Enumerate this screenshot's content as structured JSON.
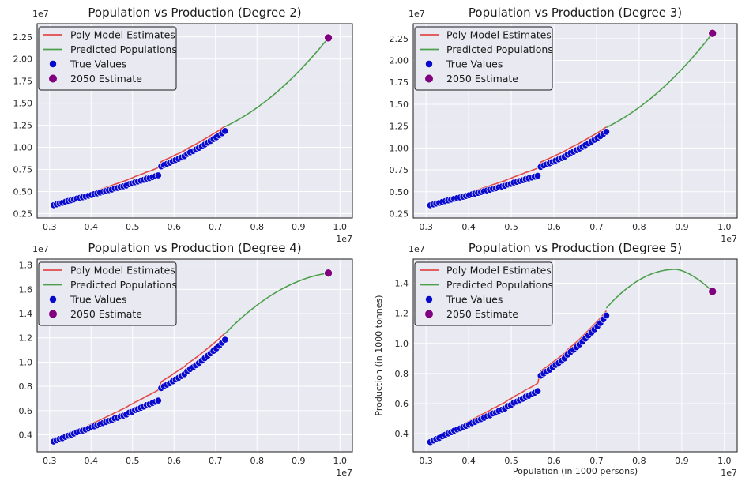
{
  "figure": {
    "background": "#ffffff",
    "axes_background": "#e9e9f1"
  },
  "chart_data": [
    {
      "type": "line",
      "title": "Population vs Production (Degree 2)",
      "xlabel": "",
      "ylabel": "",
      "x_exponent": "1e7",
      "y_exponent": "1e7",
      "xlim": [
        0.27,
        1.03
      ],
      "ylim": [
        0.2,
        2.4
      ],
      "xticks": [
        0.3,
        0.4,
        0.5,
        0.6,
        0.7,
        0.8,
        0.9,
        1.0
      ],
      "xtick_labels": [
        "0.3",
        "0.4",
        "0.5",
        "0.6",
        "0.7",
        "0.8",
        "0.9",
        "1.0"
      ],
      "yticks": [
        0.25,
        0.5,
        0.75,
        1.0,
        1.25,
        1.5,
        1.75,
        2.0,
        2.25
      ],
      "ytick_labels": [
        "0.25",
        "0.50",
        "0.75",
        "1.00",
        "1.25",
        "1.50",
        "1.75",
        "2.00",
        "2.25"
      ],
      "legend": {
        "location": "upper-left",
        "entries": [
          "Poly Model Estimates",
          "Predicted Populations",
          "True Values",
          "2050 Estimate"
        ]
      },
      "estimate_2050": {
        "x": 0.972,
        "y": 2.24
      }
    },
    {
      "type": "line",
      "title": "Population vs Production (Degree 3)",
      "xlabel": "",
      "ylabel": "",
      "x_exponent": "1e7",
      "y_exponent": "1e7",
      "xlim": [
        0.27,
        1.03
      ],
      "ylim": [
        0.2,
        2.42
      ],
      "xticks": [
        0.3,
        0.4,
        0.5,
        0.6,
        0.7,
        0.8,
        0.9,
        1.0
      ],
      "xtick_labels": [
        "0.3",
        "0.4",
        "0.5",
        "0.6",
        "0.7",
        "0.8",
        "0.9",
        "1.0"
      ],
      "yticks": [
        0.25,
        0.5,
        0.75,
        1.0,
        1.25,
        1.5,
        1.75,
        2.0,
        2.25
      ],
      "ytick_labels": [
        "0.25",
        "0.50",
        "0.75",
        "1.00",
        "1.25",
        "1.50",
        "1.75",
        "2.00",
        "2.25"
      ],
      "legend": {
        "location": "upper-left",
        "entries": [
          "Poly Model Estimates",
          "Predicted Populations",
          "True Values",
          "2050 Estimate"
        ]
      },
      "estimate_2050": {
        "x": 0.972,
        "y": 2.31
      }
    },
    {
      "type": "line",
      "title": "Population vs Production (Degree 4)",
      "xlabel": "",
      "ylabel": "",
      "x_exponent": "1e7",
      "y_exponent": "1e7",
      "xlim": [
        0.27,
        1.03
      ],
      "ylim": [
        0.26,
        1.85
      ],
      "xticks": [
        0.3,
        0.4,
        0.5,
        0.6,
        0.7,
        0.8,
        0.9,
        1.0
      ],
      "xtick_labels": [
        "0.3",
        "0.4",
        "0.5",
        "0.6",
        "0.7",
        "0.8",
        "0.9",
        "1.0"
      ],
      "yticks": [
        0.4,
        0.6,
        0.8,
        1.0,
        1.2,
        1.4,
        1.6,
        1.8
      ],
      "ytick_labels": [
        "0.4",
        "0.6",
        "0.8",
        "1.0",
        "1.2",
        "1.4",
        "1.6",
        "1.8"
      ],
      "legend": {
        "location": "upper-left",
        "entries": [
          "Poly Model Estimates",
          "Predicted Populations",
          "True Values",
          "2050 Estimate"
        ]
      },
      "estimate_2050": {
        "x": 0.972,
        "y": 1.735
      }
    },
    {
      "type": "line",
      "title": "Population vs Production (Degree 5)",
      "xlabel": "Population (in 1000 persons)",
      "ylabel": "Production (in 1000 tonnes)",
      "x_exponent": "1e7",
      "y_exponent": "1e7",
      "xlim": [
        0.27,
        1.03
      ],
      "ylim": [
        0.28,
        1.56
      ],
      "xticks": [
        0.3,
        0.4,
        0.5,
        0.6,
        0.7,
        0.8,
        0.9,
        1.0
      ],
      "xtick_labels": [
        "0.3",
        "0.4",
        "0.5",
        "0.6",
        "0.7",
        "0.8",
        "0.9",
        "1.0"
      ],
      "yticks": [
        0.4,
        0.6,
        0.8,
        1.0,
        1.2,
        1.4
      ],
      "ytick_labels": [
        "0.4",
        "0.6",
        "0.8",
        "1.0",
        "1.2",
        "1.4"
      ],
      "legend": {
        "location": "upper-left",
        "entries": [
          "Poly Model Estimates",
          "Predicted Populations",
          "True Values",
          "2050 Estimate"
        ]
      },
      "estimate_2050": {
        "x": 0.972,
        "y": 1.345
      }
    }
  ],
  "true_values": {
    "x": [
      0.31,
      0.317,
      0.324,
      0.331,
      0.338,
      0.345,
      0.352,
      0.359,
      0.366,
      0.373,
      0.38,
      0.387,
      0.394,
      0.401,
      0.408,
      0.415,
      0.422,
      0.429,
      0.436,
      0.443,
      0.45,
      0.457,
      0.464,
      0.471,
      0.478,
      0.485,
      0.492,
      0.499,
      0.506,
      0.513,
      0.52,
      0.527,
      0.534,
      0.541,
      0.548,
      0.555,
      0.562,
      0.569,
      0.576,
      0.583,
      0.59,
      0.597,
      0.604,
      0.611,
      0.618,
      0.625,
      0.632,
      0.639,
      0.646,
      0.653,
      0.66,
      0.667,
      0.674,
      0.681,
      0.688,
      0.695,
      0.702,
      0.709,
      0.716,
      0.723
    ],
    "y": [
      0.345,
      0.355,
      0.365,
      0.372,
      0.383,
      0.393,
      0.401,
      0.41,
      0.42,
      0.428,
      0.435,
      0.443,
      0.452,
      0.46,
      0.47,
      0.478,
      0.487,
      0.497,
      0.505,
      0.515,
      0.522,
      0.535,
      0.54,
      0.551,
      0.559,
      0.567,
      0.583,
      0.59,
      0.605,
      0.613,
      0.623,
      0.632,
      0.646,
      0.652,
      0.662,
      0.672,
      0.683,
      0.785,
      0.8,
      0.813,
      0.825,
      0.842,
      0.857,
      0.87,
      0.885,
      0.9,
      0.925,
      0.943,
      0.957,
      0.975,
      0.993,
      1.012,
      1.032,
      1.052,
      1.072,
      1.093,
      1.113,
      1.135,
      1.16,
      1.185
    ]
  },
  "legend_colors": {
    "Poly Model Estimates": "#e24a4a",
    "Predicted Populations": "#4ca04c",
    "True Values": "#0a0acc",
    "2050 Estimate": "#800080"
  }
}
